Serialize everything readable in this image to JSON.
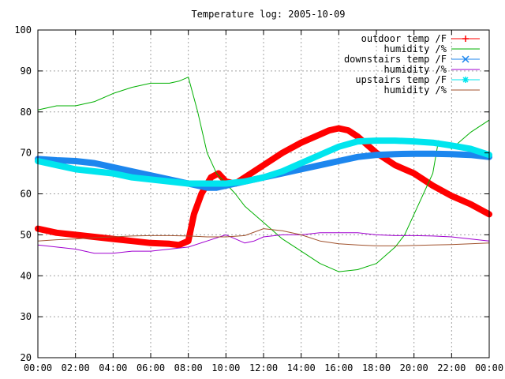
{
  "chart_data": {
    "type": "line",
    "title": "Temperature log: 2005-10-09",
    "xlabel": "",
    "ylabel": "",
    "xlim": [
      0,
      24
    ],
    "ylim": [
      20,
      100
    ],
    "grid": true,
    "legend_position": "top-right",
    "x_tick_labels": [
      "00:00",
      "02:00",
      "04:00",
      "06:00",
      "08:00",
      "10:00",
      "12:00",
      "14:00",
      "16:00",
      "18:00",
      "20:00",
      "22:00",
      "00:00"
    ],
    "y_tick_labels": [
      "20",
      "30",
      "40",
      "50",
      "60",
      "70",
      "80",
      "90",
      "100"
    ],
    "series": [
      {
        "name": "outdoor temp /F",
        "color": "#ff0000",
        "marker": "plus",
        "x": [
          0,
          1,
          2,
          3,
          4,
          5,
          6,
          7,
          7.5,
          8,
          8.3,
          8.7,
          9.2,
          9.6,
          10,
          10.5,
          11,
          12,
          13,
          14,
          15,
          15.5,
          16,
          16.5,
          17,
          17.5,
          18,
          19,
          20,
          21,
          22,
          23,
          24
        ],
        "y": [
          51.5,
          50.5,
          50,
          49.5,
          49,
          48.5,
          48,
          47.8,
          47.5,
          48.5,
          55,
          60,
          64,
          65,
          63,
          62.5,
          64,
          67,
          70,
          72.5,
          74.5,
          75.5,
          76,
          75.5,
          74,
          72,
          70,
          67,
          65,
          62,
          59.5,
          57.5,
          55
        ]
      },
      {
        "name": "humidity /%",
        "color": "#00b000",
        "marker": "none",
        "x": [
          0,
          1,
          2,
          3,
          4,
          5,
          6,
          7,
          7.5,
          8,
          8.5,
          9,
          9.5,
          10,
          10.5,
          11,
          12,
          13,
          14,
          15,
          16,
          17,
          18,
          19,
          19.5,
          20,
          20.5,
          21,
          21.3,
          22,
          23,
          24
        ],
        "y": [
          80.5,
          81.5,
          81.5,
          82.5,
          84.5,
          86,
          87,
          87,
          87.5,
          88.5,
          80,
          70,
          65,
          62.5,
          60,
          57,
          53,
          49,
          46,
          43,
          41,
          41.5,
          43,
          47,
          50,
          55,
          60,
          65,
          73,
          71,
          75,
          78
        ]
      },
      {
        "name": "downstairs temp /F",
        "color": "#1c86ee",
        "marker": "cross",
        "x": [
          0,
          1,
          2,
          3,
          4,
          5,
          6,
          7,
          8,
          9,
          9.5,
          10,
          11,
          12,
          13,
          14,
          15,
          16,
          17,
          18,
          19,
          20,
          21,
          22,
          23,
          24
        ],
        "y": [
          68.5,
          68.2,
          68,
          67.5,
          66.5,
          65.5,
          64.5,
          63.5,
          62.5,
          61.5,
          61.5,
          62,
          63,
          64,
          65,
          66,
          67,
          68,
          69,
          69.5,
          69.7,
          69.8,
          69.8,
          69.7,
          69.5,
          69
        ]
      },
      {
        "name": "humidity /%",
        "color": "#a000d0",
        "marker": "none",
        "x": [
          0,
          1,
          2,
          3,
          4,
          5,
          6,
          7,
          8,
          9,
          10,
          10.5,
          11,
          11.5,
          12,
          13,
          14,
          15,
          16,
          17,
          18,
          19,
          20,
          21,
          22,
          23,
          24
        ],
        "y": [
          47.5,
          47,
          46.5,
          45.5,
          45.5,
          46,
          46,
          46.5,
          47,
          48.5,
          50,
          49,
          48,
          48.5,
          49.5,
          50,
          50,
          50.5,
          50.5,
          50.5,
          50,
          49.8,
          49.8,
          49.7,
          49.5,
          49,
          48.5
        ]
      },
      {
        "name": "upstairs temp /F",
        "color": "#00e5ee",
        "marker": "star",
        "x": [
          0,
          1,
          2,
          3,
          4,
          5,
          6,
          7,
          8,
          9,
          10,
          11,
          12,
          13,
          14,
          15,
          16,
          17,
          18,
          19,
          20,
          21,
          22,
          23,
          24
        ],
        "y": [
          68,
          67,
          66,
          65.5,
          65,
          64,
          63.5,
          63,
          62.5,
          62.5,
          62.5,
          63,
          64,
          65.5,
          67.5,
          69.5,
          71.5,
          72.8,
          73,
          73,
          72.8,
          72.5,
          71.8,
          71,
          69.5
        ]
      },
      {
        "name": "humidity /%",
        "color": "#a0522d",
        "marker": "none",
        "x": [
          0,
          1,
          2,
          3,
          4,
          5,
          6,
          7,
          8,
          9,
          10,
          11,
          12,
          13,
          14,
          15,
          16,
          17,
          18,
          19,
          20,
          21,
          22,
          23,
          24
        ],
        "y": [
          48.5,
          48.8,
          49,
          49.3,
          49.5,
          49.7,
          49.8,
          49.8,
          49.7,
          49.5,
          49.5,
          49.8,
          51.5,
          51,
          50,
          48.5,
          47.8,
          47.5,
          47.3,
          47.3,
          47.4,
          47.5,
          47.6,
          47.8,
          48
        ]
      }
    ]
  }
}
